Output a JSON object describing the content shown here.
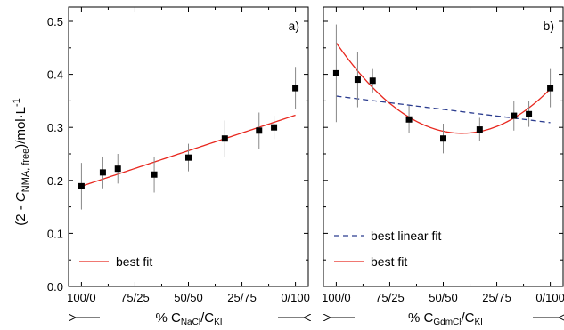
{
  "chart_data": [
    {
      "type": "scatter",
      "panel_label": "a)",
      "ylabel": "(2 - CNMA, free)/mol·L-1",
      "ylabel_parts": {
        "main": "(2 - ",
        "italic": "C",
        "sub": "NMA, free",
        "mid": ")/mol·L",
        "sup": "-1"
      },
      "xlabel": "% CNaCl/CKI",
      "xlabel_parts": {
        "pre": "% C",
        "sub1": "NaCl",
        "mid": "/C",
        "sub2": "KI"
      },
      "ylim": [
        0.0,
        0.5
      ],
      "y_ticks": [
        "0.0",
        "0.1",
        "0.2",
        "0.3",
        "0.4",
        "0.5"
      ],
      "x_ticks": [
        {
          "x": 0,
          "label": "100/0"
        },
        {
          "x": 25,
          "label": "75/25"
        },
        {
          "x": 50,
          "label": "50/50"
        },
        {
          "x": 75,
          "label": "25/75"
        },
        {
          "x": 100,
          "label": "0/100"
        }
      ],
      "xlim": [
        -6,
        106
      ],
      "points": [
        {
          "x": 0,
          "y": 0.189,
          "err": 0.044
        },
        {
          "x": 10,
          "y": 0.215,
          "err": 0.03
        },
        {
          "x": 17,
          "y": 0.222,
          "err": 0.028
        },
        {
          "x": 34,
          "y": 0.211,
          "err": 0.034
        },
        {
          "x": 50,
          "y": 0.243,
          "err": 0.026
        },
        {
          "x": 67,
          "y": 0.279,
          "err": 0.034
        },
        {
          "x": 83,
          "y": 0.294,
          "err": 0.034
        },
        {
          "x": 90,
          "y": 0.3,
          "err": 0.022
        },
        {
          "x": 100,
          "y": 0.374,
          "err": 0.04
        }
      ],
      "fits": [
        {
          "name": "best fit",
          "style": "solid",
          "color": "#e8271e",
          "kind": "linear",
          "coef": [
            0.189,
            0.00134
          ]
        }
      ]
    },
    {
      "type": "scatter",
      "panel_label": "b)",
      "xlabel": "% CGdmCl/CKI",
      "xlabel_parts": {
        "pre": "% C",
        "sub1": "GdmCl",
        "mid": "/C",
        "sub2": "KI"
      },
      "ylim": [
        0.0,
        0.5
      ],
      "x_ticks": [
        {
          "x": 0,
          "label": "100/0"
        },
        {
          "x": 25,
          "label": "75/25"
        },
        {
          "x": 50,
          "label": "50/50"
        },
        {
          "x": 75,
          "label": "25/75"
        },
        {
          "x": 100,
          "label": "0/100"
        }
      ],
      "xlim": [
        -6,
        106
      ],
      "points": [
        {
          "x": 0,
          "y": 0.402,
          "err": 0.092
        },
        {
          "x": 10,
          "y": 0.39,
          "err": 0.052
        },
        {
          "x": 17,
          "y": 0.388,
          "err": 0.022
        },
        {
          "x": 34,
          "y": 0.315,
          "err": 0.026
        },
        {
          "x": 50,
          "y": 0.279,
          "err": 0.028
        },
        {
          "x": 67,
          "y": 0.296,
          "err": 0.022
        },
        {
          "x": 83,
          "y": 0.322,
          "err": 0.028
        },
        {
          "x": 90,
          "y": 0.325,
          "err": 0.024
        },
        {
          "x": 100,
          "y": 0.374,
          "err": 0.036
        }
      ],
      "fits": [
        {
          "name": "best linear fit",
          "style": "dashed",
          "color": "#2b3c8f",
          "kind": "linear",
          "coef": [
            0.359,
            -0.0005
          ]
        },
        {
          "name": "best fit",
          "style": "solid",
          "color": "#e8271e",
          "kind": "quadratic",
          "coef": [
            0.4595,
            -0.0058,
            4.93e-05
          ]
        }
      ]
    }
  ]
}
